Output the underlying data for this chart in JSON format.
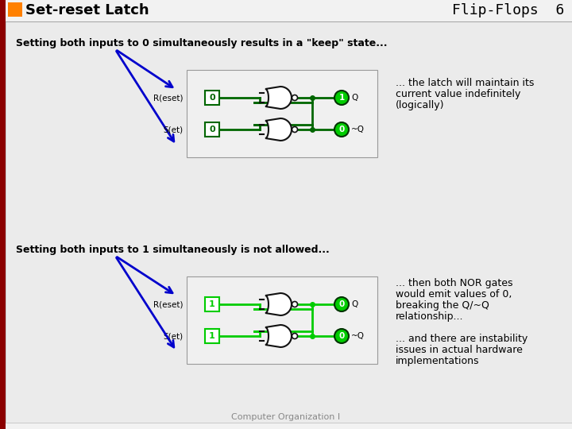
{
  "title": "Set-reset Latch",
  "subtitle": "Flip-Flops  6",
  "bg_color": "#f2f2f2",
  "orange_color": "#FF8000",
  "dark_red": "#8B0000",
  "text1": "Setting both inputs to 0 simultaneously results in a \"keep\" state...",
  "text2_line1": "... the latch will maintain its",
  "text2_line2": "current value indefinitely",
  "text2_line3": "(logically)",
  "text3": "Setting both inputs to 1 simultaneously is not allowed...",
  "text4_line1": "... then both NOR gates",
  "text4_line2": "would emit values of 0,",
  "text4_line3": "breaking the Q/~Q",
  "text4_line4": "relationship...",
  "text5_line1": "... and there are instability",
  "text5_line2": "issues in actual hardware",
  "text5_line3": "implementations",
  "footer": "Computer Organization I",
  "green_bright": "#00CC00",
  "green_dark": "#006600",
  "gate_outline": "#111111",
  "arrow_blue": "#0000CC",
  "white": "#ffffff",
  "circuit1_bg": "#f0f0f0",
  "circuit2_bg": "#f0f0f0"
}
